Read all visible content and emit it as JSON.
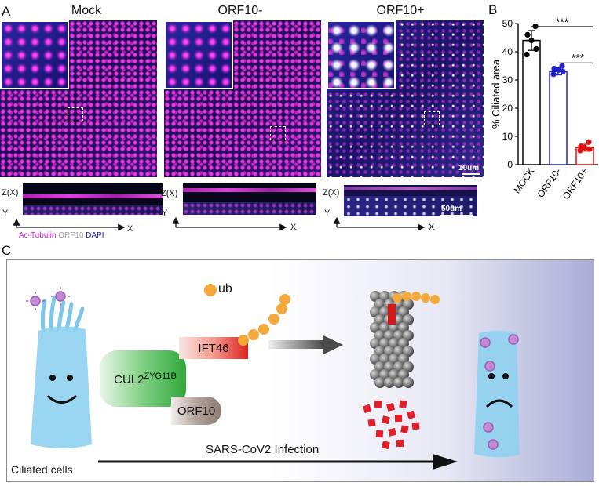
{
  "panels": {
    "a": {
      "letter": "A",
      "titles": [
        "Mock",
        "ORF10-",
        "ORF10+"
      ],
      "scale_top": "10um",
      "scale_bottom": "50um",
      "zx": "Z(X)",
      "y": "Y",
      "x": "X",
      "legend": {
        "ac_tubulin": "Ac-Tubulin",
        "orf10": "ORF10",
        "dapi": "DAPI"
      },
      "legend_colors": {
        "ac_tubulin": "#d21fd2",
        "orf10": "#9a9a9a",
        "dapi": "#1a22b0"
      }
    },
    "b": {
      "letter": "B"
    },
    "c": {
      "letter": "C",
      "ub_label": "ub",
      "ift46": "IFT46",
      "cul2_main": "CUL2",
      "cul2_sup": "ZYG11B",
      "orf10": "ORF10",
      "infection": "SARS-CoV2 Infection",
      "ciliated": "Ciliated cells"
    }
  },
  "chart_data": {
    "type": "bar",
    "categories": [
      "MOCK",
      "ORF10-",
      "ORF10+"
    ],
    "values": [
      44,
      33,
      6
    ],
    "points": [
      [
        39,
        41,
        44,
        46,
        49
      ],
      [
        32,
        33,
        33.5,
        34,
        35
      ],
      [
        5,
        5.5,
        6,
        6.5,
        8
      ]
    ],
    "errors": [
      3.5,
      1.2,
      1.2
    ],
    "colors": [
      "#000000",
      "#2222cc",
      "#dd1111"
    ],
    "ylabel": "% Ciliated area",
    "ylim": [
      0,
      50
    ],
    "yticks": [
      0,
      10,
      20,
      30,
      40,
      50
    ],
    "significance": [
      "***",
      "***"
    ]
  }
}
